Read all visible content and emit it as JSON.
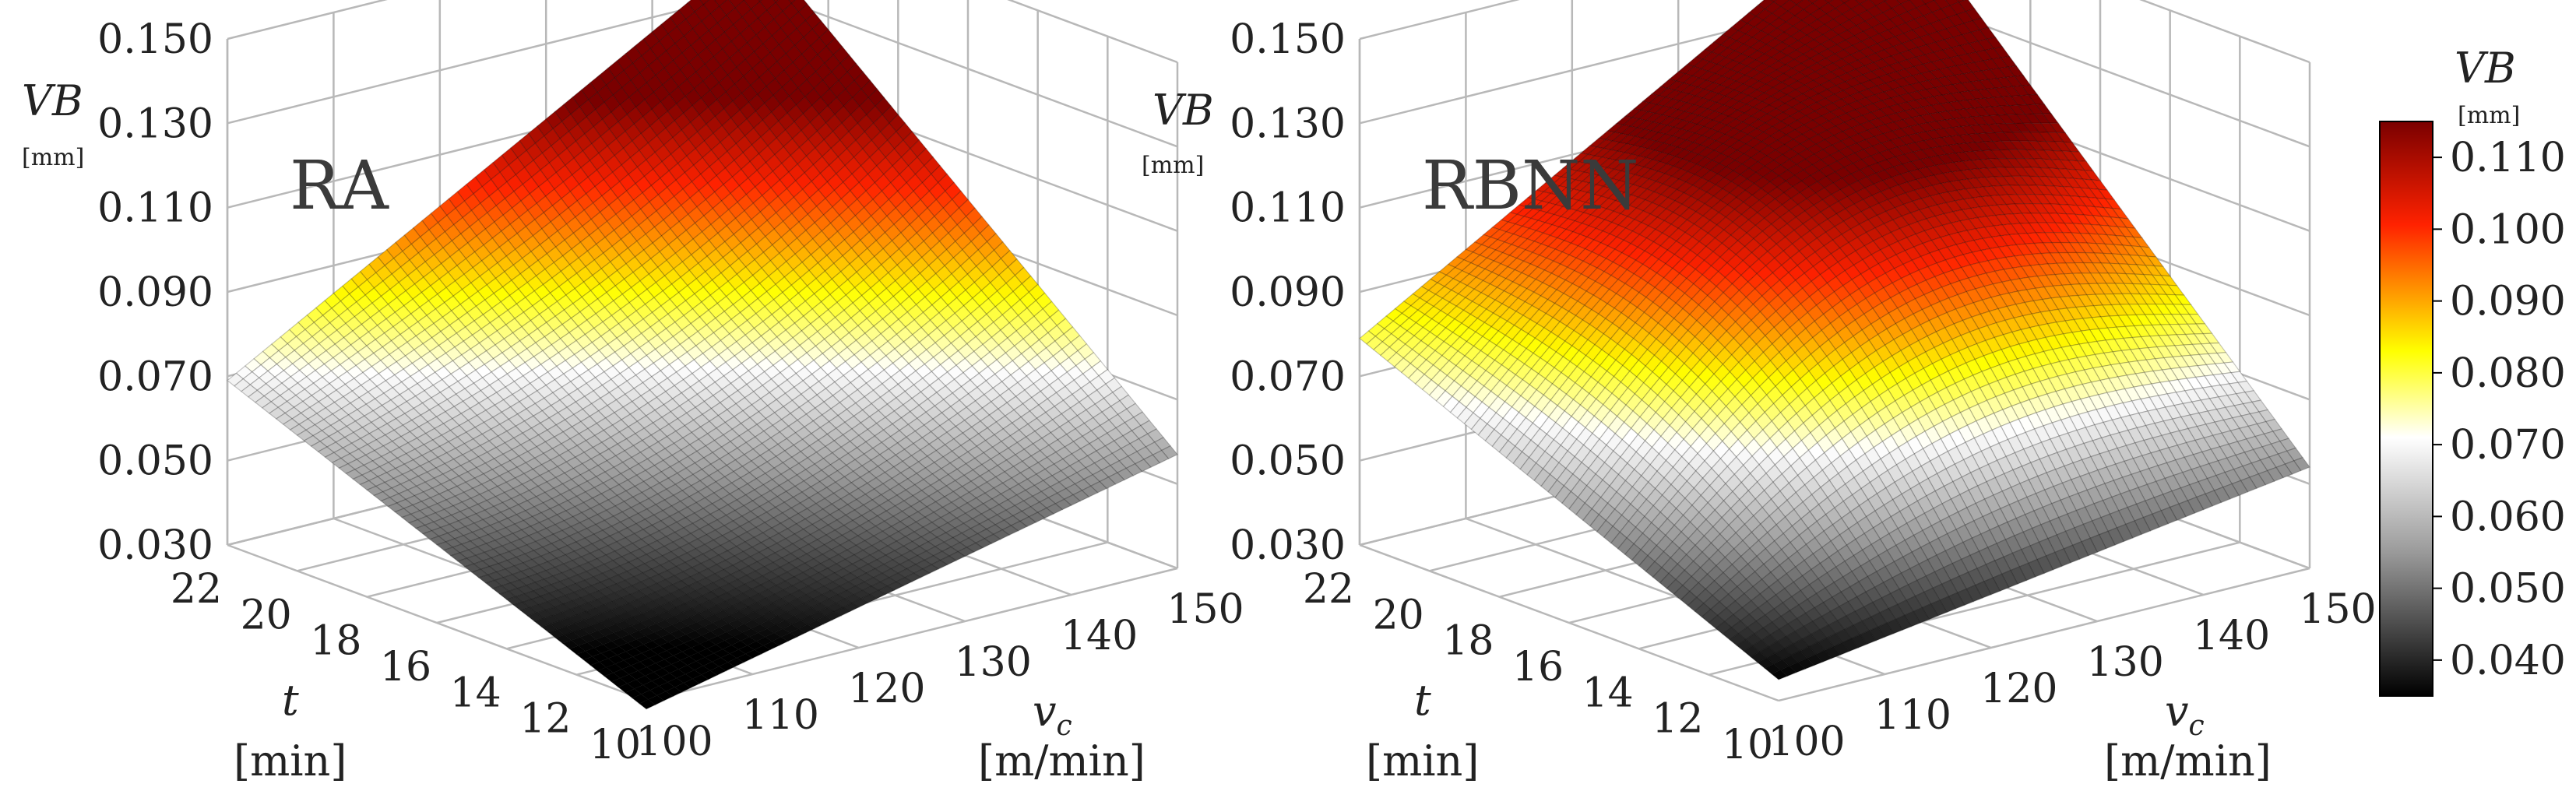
{
  "chart_data": [
    {
      "type": "surface3d",
      "title": "RA",
      "x": {
        "label": "t",
        "unit": "[min]",
        "min": 10,
        "max": 22,
        "ticks": [
          "22",
          "20",
          "18",
          "16",
          "14",
          "12",
          "10"
        ]
      },
      "y": {
        "label": "vc",
        "label_sub": "c",
        "unit": "[m/min]",
        "min": 100,
        "max": 150,
        "ticks": [
          "100",
          "110",
          "120",
          "130",
          "140",
          "150"
        ]
      },
      "z": {
        "label": "VB",
        "unit": "[mm]",
        "min": 0.03,
        "max": 0.15,
        "ticks": [
          "0.150",
          "0.130",
          "0.110",
          "0.090",
          "0.070",
          "0.050",
          "0.030"
        ]
      },
      "corner_values": {
        "t10_v100": 0.028,
        "t10_v150": 0.057,
        "t22_v100": 0.069,
        "t22_v150": 0.141
      },
      "surface_peak": "t=22 min, vc=150 m/min"
    },
    {
      "type": "surface3d",
      "title": "RBNN",
      "x": {
        "label": "t",
        "unit": "[min]",
        "min": 10,
        "max": 22,
        "ticks": [
          "22",
          "20",
          "18",
          "16",
          "14",
          "12",
          "10"
        ]
      },
      "y": {
        "label": "vc",
        "label_sub": "c",
        "unit": "[m/min]",
        "min": 100,
        "max": 150,
        "ticks": [
          "100",
          "110",
          "120",
          "130",
          "140",
          "150"
        ]
      },
      "z": {
        "label": "VB",
        "unit": "[mm]",
        "min": 0.03,
        "max": 0.15,
        "ticks": [
          "0.150",
          "0.130",
          "0.110",
          "0.090",
          "0.070",
          "0.050",
          "0.030"
        ]
      },
      "corner_values": {
        "t10_v100": 0.035,
        "t10_v150": 0.054,
        "t22_v100": 0.079,
        "t22_v150": 0.153
      },
      "surface_peak": "t=22 min, vc=150 m/min"
    }
  ],
  "colorbar": {
    "label": "VB",
    "unit": "[mm]",
    "min": 0.035,
    "max": 0.115,
    "ticks": [
      "0.110",
      "0.100",
      "0.090",
      "0.080",
      "0.070",
      "0.060",
      "0.050",
      "0.040"
    ],
    "colormap": "hot-gray",
    "colors": [
      "#000000",
      "#9a9a9a",
      "#ffffff",
      "#ffff00",
      "#ff2200",
      "#7a0000"
    ]
  }
}
